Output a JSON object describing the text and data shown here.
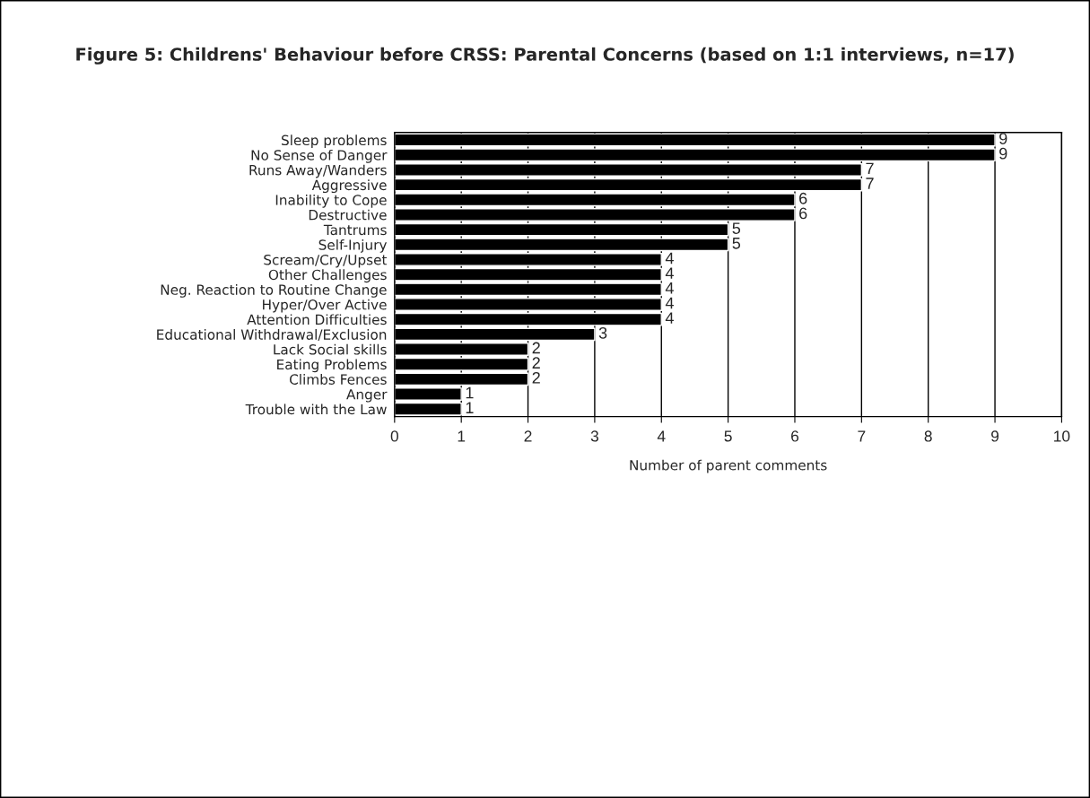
{
  "chart_data": {
    "type": "bar",
    "orientation": "horizontal",
    "title": "Figure 5: Childrens' Behaviour before CRSS: Parental Concerns (based on 1:1 interviews, n=17)",
    "xlabel": "Number of parent comments",
    "categories": [
      "Sleep problems",
      "No Sense of Danger",
      "Runs Away/Wanders",
      "Aggressive",
      "Inability to Cope",
      "Destructive",
      "Tantrums",
      "Self-Injury",
      "Scream/Cry/Upset",
      "Other Challenges",
      "Neg. Reaction to Routine Change",
      "Hyper/Over Active",
      "Attention Difficulties",
      "Educational Withdrawal/Exclusion",
      "Lack Social skills",
      "Eating Problems",
      "Climbs Fences",
      "Anger",
      "Trouble with the Law"
    ],
    "values": [
      9,
      9,
      7,
      7,
      6,
      6,
      5,
      5,
      4,
      4,
      4,
      4,
      4,
      3,
      2,
      2,
      2,
      1,
      1
    ],
    "color": "#000000",
    "xlim": [
      0,
      10
    ],
    "xticks": [
      0,
      1,
      2,
      3,
      4,
      5,
      6,
      7,
      8,
      9,
      10
    ],
    "grid": "x",
    "data_labels": true
  }
}
